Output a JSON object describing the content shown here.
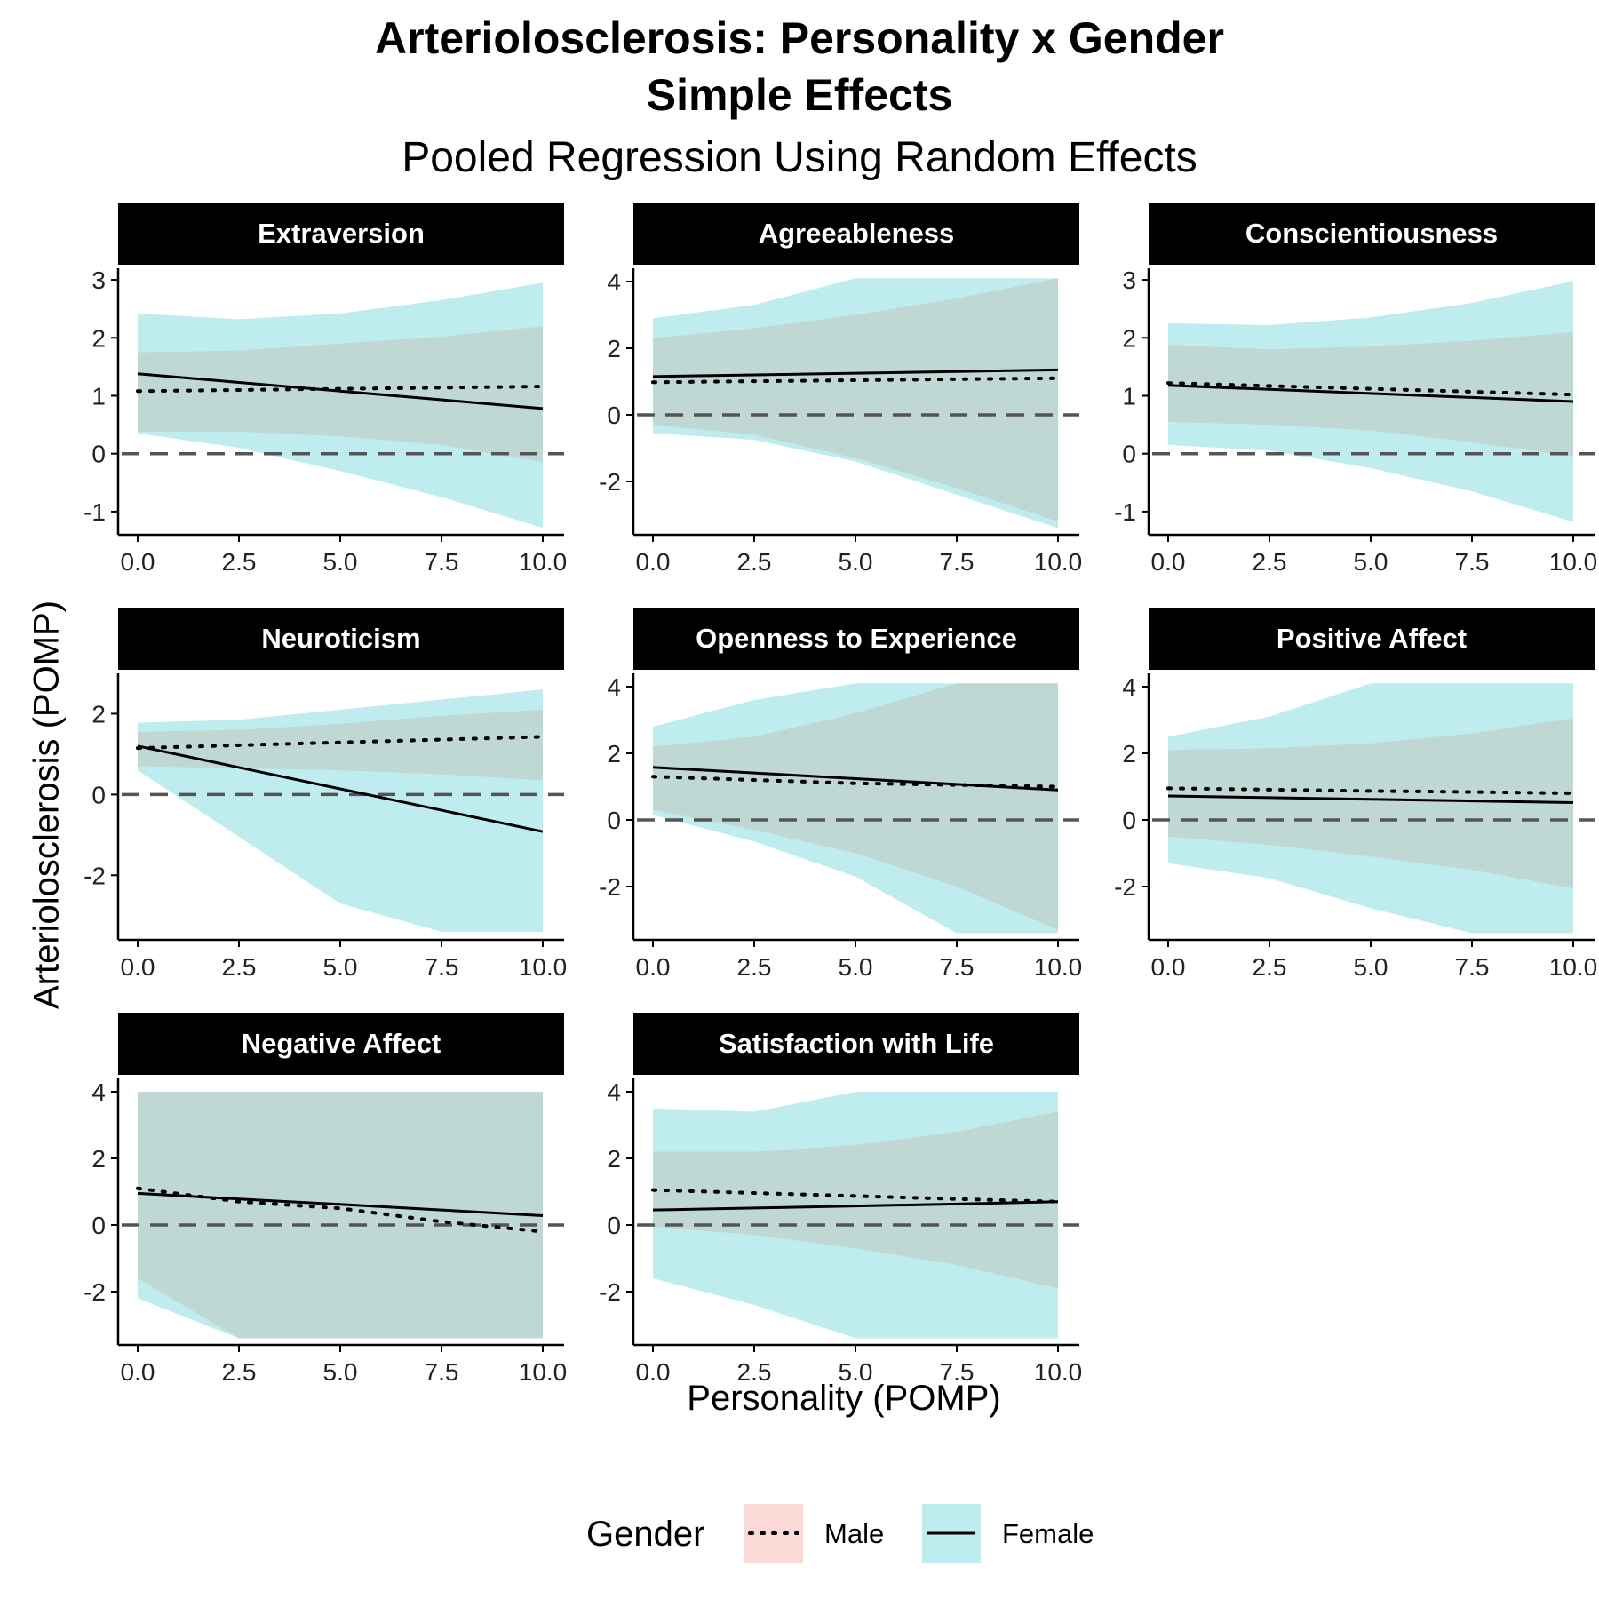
{
  "title_line1": "Arteriolosclerosis: Personality x Gender",
  "title_line2": "Simple Effects",
  "subtitle": "Pooled Regression Using Random Effects",
  "xlabel": "Personality (POMP)",
  "ylabel": "Arteriolosclerosis (POMP)",
  "legend": {
    "title": "Gender",
    "entries": [
      {
        "label": "Male",
        "linetype": "dotted",
        "fill": "#fbd9d6"
      },
      {
        "label": "Female",
        "linetype": "solid",
        "fill": "#bfedef"
      }
    ]
  },
  "colors": {
    "strip_bg": "#000000",
    "strip_text": "#ffffff",
    "female_ribbon": "#bfedef",
    "overlap_ribbon": "#bfd8d4",
    "line": "#000000",
    "reference_line": "#555555"
  },
  "chart_data": {
    "type": "line",
    "facets": [
      {
        "name": "Extraversion",
        "yticks": [
          -1,
          0,
          1,
          2,
          3
        ],
        "ylim": [
          -1.4,
          3.2
        ],
        "x": [
          0,
          2.5,
          5,
          7.5,
          10
        ],
        "series": [
          {
            "name": "Male",
            "y": [
              1.08,
              1.1,
              1.12,
              1.14,
              1.16
            ],
            "lower": [
              0.38,
              0.38,
              0.3,
              0.15,
              -0.15
            ],
            "upper": [
              1.75,
              1.78,
              1.9,
              2.02,
              2.2
            ]
          },
          {
            "name": "Female",
            "y": [
              1.38,
              1.23,
              1.08,
              0.93,
              0.78
            ],
            "lower": [
              0.35,
              0.1,
              -0.3,
              -0.75,
              -1.28
            ],
            "upper": [
              2.42,
              2.32,
              2.42,
              2.65,
              2.95
            ]
          }
        ]
      },
      {
        "name": "Agreeableness",
        "yticks": [
          -2,
          0,
          2,
          4
        ],
        "ylim": [
          -3.6,
          4.4
        ],
        "x": [
          0,
          2.5,
          5,
          7.5,
          10
        ],
        "series": [
          {
            "name": "Male",
            "y": [
              0.98,
              1.01,
              1.04,
              1.07,
              1.1
            ],
            "lower": [
              -0.3,
              -0.6,
              -1.3,
              -2.2,
              -3.2
            ],
            "upper": [
              2.3,
              2.6,
              3.0,
              3.5,
              4.1
            ]
          },
          {
            "name": "Female",
            "y": [
              1.15,
              1.2,
              1.25,
              1.3,
              1.35
            ],
            "lower": [
              -0.55,
              -0.75,
              -1.4,
              -2.4,
              -3.4
            ],
            "upper": [
              2.9,
              3.3,
              4.1,
              4.1,
              4.1
            ]
          }
        ]
      },
      {
        "name": "Conscientiousness",
        "yticks": [
          -1,
          0,
          1,
          2,
          3
        ],
        "ylim": [
          -1.4,
          3.2
        ],
        "x": [
          0,
          2.5,
          5,
          7.5,
          10
        ],
        "series": [
          {
            "name": "Male",
            "y": [
              1.22,
              1.17,
              1.12,
              1.07,
              1.02
            ],
            "lower": [
              0.55,
              0.5,
              0.4,
              0.2,
              -0.05
            ],
            "upper": [
              1.88,
              1.8,
              1.85,
              1.95,
              2.1
            ]
          },
          {
            "name": "Female",
            "y": [
              1.18,
              1.11,
              1.04,
              0.97,
              0.9
            ],
            "lower": [
              0.15,
              0.05,
              -0.25,
              -0.65,
              -1.18
            ],
            "upper": [
              2.25,
              2.22,
              2.35,
              2.6,
              2.98
            ]
          }
        ]
      },
      {
        "name": "Neuroticism",
        "yticks": [
          -2,
          0,
          2
        ],
        "ylim": [
          -3.6,
          3.0
        ],
        "x": [
          0,
          2.5,
          5,
          7.5,
          10
        ],
        "series": [
          {
            "name": "Male",
            "y": [
              1.15,
              1.22,
              1.29,
              1.36,
              1.43
            ],
            "lower": [
              0.7,
              0.65,
              0.6,
              0.5,
              0.35
            ],
            "upper": [
              1.55,
              1.6,
              1.75,
              1.95,
              2.1
            ]
          },
          {
            "name": "Female",
            "y": [
              1.2,
              0.67,
              0.14,
              -0.39,
              -0.92
            ],
            "lower": [
              0.6,
              -1.05,
              -2.7,
              -3.4,
              -3.4
            ],
            "upper": [
              1.78,
              1.85,
              2.1,
              2.35,
              2.6
            ]
          }
        ]
      },
      {
        "name": "Openness to Experience",
        "yticks": [
          -2,
          0,
          2,
          4
        ],
        "ylim": [
          -3.6,
          4.4
        ],
        "x": [
          0,
          2.5,
          5,
          7.5,
          10
        ],
        "series": [
          {
            "name": "Male",
            "y": [
              1.3,
              1.2,
              1.1,
              1.05,
              1.0
            ],
            "lower": [
              0.3,
              -0.3,
              -1.0,
              -2.0,
              -3.3
            ],
            "upper": [
              2.2,
              2.5,
              3.2,
              4.1,
              4.1
            ]
          },
          {
            "name": "Female",
            "y": [
              1.58,
              1.41,
              1.24,
              1.07,
              0.9
            ],
            "lower": [
              0.15,
              -0.65,
              -1.7,
              -3.4,
              -3.4
            ],
            "upper": [
              2.8,
              3.6,
              4.1,
              4.1,
              4.1
            ]
          }
        ]
      },
      {
        "name": "Positive Affect",
        "yticks": [
          -2,
          0,
          2,
          4
        ],
        "ylim": [
          -3.6,
          4.4
        ],
        "x": [
          0,
          2.5,
          5,
          7.5,
          10
        ],
        "series": [
          {
            "name": "Male",
            "y": [
              0.95,
              0.91,
              0.87,
              0.84,
              0.8
            ],
            "lower": [
              -0.5,
              -0.75,
              -1.1,
              -1.5,
              -2.05
            ],
            "upper": [
              2.1,
              2.15,
              2.3,
              2.6,
              3.05
            ]
          },
          {
            "name": "Female",
            "y": [
              0.72,
              0.67,
              0.62,
              0.57,
              0.52
            ],
            "lower": [
              -1.3,
              -1.75,
              -2.65,
              -3.4,
              -3.4
            ],
            "upper": [
              2.5,
              3.1,
              4.1,
              4.1,
              4.1
            ]
          }
        ]
      },
      {
        "name": "Negative Affect",
        "yticks": [
          -2,
          0,
          2,
          4
        ],
        "ylim": [
          -3.6,
          4.4
        ],
        "x": [
          0,
          2.5,
          5,
          7.5,
          10
        ],
        "series": [
          {
            "name": "Male",
            "y": [
              1.1,
              0.7,
              0.5,
              0.1,
              -0.2
            ],
            "lower": [
              -1.6,
              -3.4,
              -3.4,
              -3.4,
              -3.4
            ],
            "upper": [
              4.0,
              4.0,
              4.0,
              4.0,
              4.0
            ]
          },
          {
            "name": "Female",
            "y": [
              0.95,
              0.78,
              0.62,
              0.45,
              0.28
            ],
            "lower": [
              -2.2,
              -3.4,
              -3.4,
              -3.4,
              -3.4
            ],
            "upper": [
              4.0,
              4.0,
              4.0,
              4.0,
              4.0
            ]
          }
        ]
      },
      {
        "name": "Satisfaction with Life",
        "yticks": [
          -2,
          0,
          2,
          4
        ],
        "ylim": [
          -3.6,
          4.4
        ],
        "x": [
          0,
          2.5,
          5,
          7.5,
          10
        ],
        "series": [
          {
            "name": "Male",
            "y": [
              1.05,
              0.96,
              0.87,
              0.78,
              0.7
            ],
            "lower": [
              -0.05,
              -0.3,
              -0.7,
              -1.2,
              -1.9
            ],
            "upper": [
              2.2,
              2.2,
              2.4,
              2.8,
              3.4
            ]
          },
          {
            "name": "Female",
            "y": [
              0.45,
              0.51,
              0.57,
              0.63,
              0.7
            ],
            "lower": [
              -1.6,
              -2.4,
              -3.4,
              -3.4,
              -3.4
            ],
            "upper": [
              3.5,
              3.4,
              4.0,
              4.0,
              4.0
            ]
          }
        ]
      }
    ],
    "xticks": [
      "0.0",
      "2.5",
      "5.0",
      "7.5",
      "10.0"
    ],
    "xlim": [
      0,
      10
    ],
    "reference_line": 0,
    "legend_position": "bottom"
  }
}
